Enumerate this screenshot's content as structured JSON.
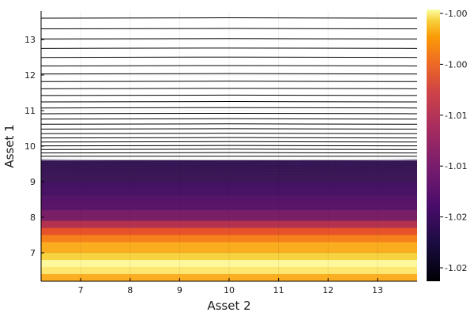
{
  "chart_data": {
    "type": "heatmap",
    "subtype": "filled-contour",
    "title": "",
    "xlabel": "Asset 2",
    "ylabel": "Asset 1",
    "xlim": [
      6.2,
      13.8
    ],
    "ylim": [
      6.2,
      13.8
    ],
    "x_ticks": [
      "7",
      "8",
      "9",
      "10",
      "11",
      "12",
      "13"
    ],
    "y_ticks": [
      "7",
      "8",
      "9",
      "10",
      "11",
      "12",
      "13"
    ],
    "colorbar": {
      "colormap": "inferno",
      "ticks": [
        "-1.00",
        "-1.00",
        "-1.01",
        "-1.01",
        "-1.02",
        "-1.02"
      ]
    },
    "bands": [
      {
        "y_from": 13.4,
        "y_to": 13.8,
        "color": "#ffffff"
      },
      {
        "y_from": 9.6,
        "y_to": 13.4,
        "color": "#ffffff"
      },
      {
        "y_from": 9.0,
        "y_to": 9.6,
        "color": "#3a1a5c"
      },
      {
        "y_from": 8.6,
        "y_to": 9.0,
        "color": "#40126b"
      },
      {
        "y_from": 8.2,
        "y_to": 8.6,
        "color": "#4e1470"
      },
      {
        "y_from": 7.9,
        "y_to": 8.2,
        "color": "#721f6b"
      },
      {
        "y_from": 7.7,
        "y_to": 7.9,
        "color": "#b2324f"
      },
      {
        "y_from": 7.5,
        "y_to": 7.7,
        "color": "#e6532a"
      },
      {
        "y_from": 7.3,
        "y_to": 7.5,
        "color": "#f6811a"
      },
      {
        "y_from": 7.0,
        "y_to": 7.3,
        "color": "#fbad20"
      },
      {
        "y_from": 6.8,
        "y_to": 7.0,
        "color": "#f7d340"
      },
      {
        "y_from": 6.6,
        "y_to": 6.8,
        "color": "#fcf89b"
      },
      {
        "y_from": 6.4,
        "y_to": 6.6,
        "color": "#fde771"
      },
      {
        "y_from": 6.2,
        "y_to": 6.4,
        "color": "#fbae21"
      }
    ],
    "grid": true,
    "legend": "colorbar-right"
  }
}
